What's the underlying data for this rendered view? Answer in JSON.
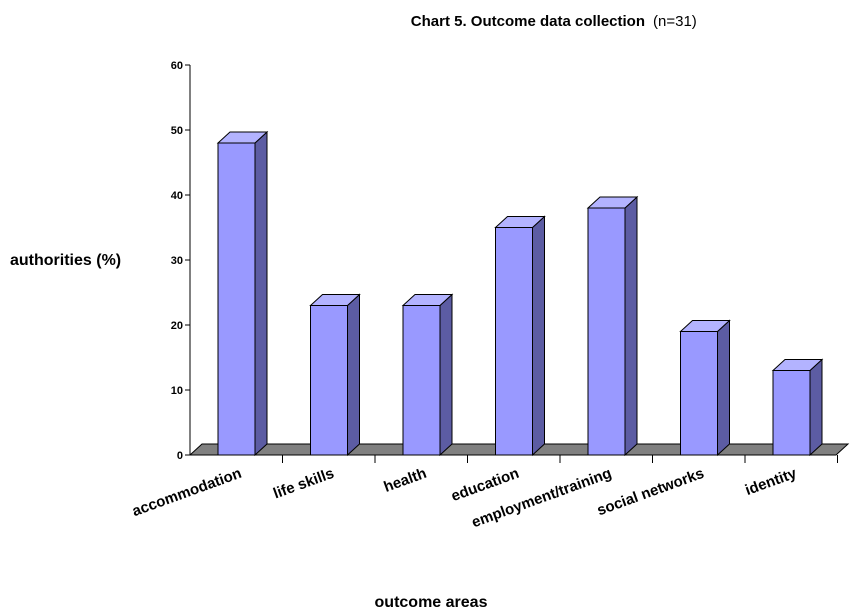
{
  "chart_data": {
    "type": "bar",
    "title": "Chart 5. Outcome data collection",
    "subtitle": "(n=31)",
    "xlabel": "outcome areas",
    "ylabel": "authorities (%)",
    "categories": [
      "accommodation",
      "life skills",
      "health",
      "education",
      "employment/training",
      "social networks",
      "identity"
    ],
    "values": [
      48,
      23,
      23,
      35,
      38,
      19,
      13
    ],
    "ylim": [
      0,
      60
    ],
    "yticks": [
      "0",
      "10",
      "20",
      "30",
      "40",
      "50",
      "60"
    ],
    "grid": false,
    "legend": "none",
    "colors": {
      "bar_front": "#9999ff",
      "bar_top": "#b3b3ff",
      "bar_side": "#5c5ca3",
      "floor": "#808080",
      "outline": "#000000"
    }
  }
}
